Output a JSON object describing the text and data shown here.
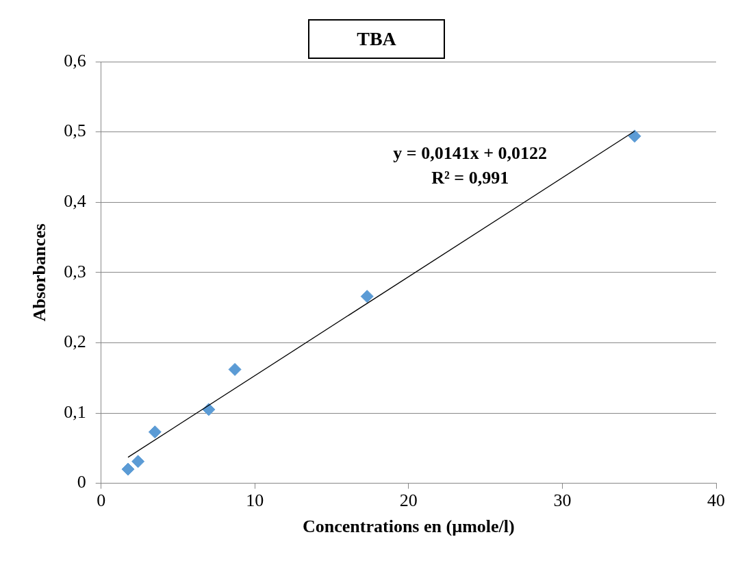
{
  "chart_data": {
    "type": "scatter",
    "title": "TBA",
    "xlabel": "Concentrations en (µmole/l)",
    "ylabel": "Absorbances",
    "series": [
      {
        "type": "scatter",
        "color": "#5b9bd5",
        "x": [
          1.75,
          2.4,
          3.5,
          7.0,
          8.7,
          17.3,
          34.7
        ],
        "values": [
          0.02,
          0.031,
          0.073,
          0.105,
          0.162,
          0.266,
          0.494
        ]
      },
      {
        "type": "line",
        "color": "#000000",
        "x": [
          1.75,
          34.7
        ],
        "values": [
          0.037,
          0.501
        ],
        "marker": "none"
      }
    ],
    "annotations": [
      "y = 0,0141x + 0,0122",
      "R² = 0,991"
    ],
    "xlim": [
      0,
      40
    ],
    "xticks": [
      0,
      10,
      20,
      30,
      40
    ],
    "ylim": [
      0,
      0.6
    ],
    "yticks": [
      {
        "value": 0,
        "label": "0"
      },
      {
        "value": 0.1,
        "label": "0,1"
      },
      {
        "value": 0.2,
        "label": "0,2"
      },
      {
        "value": 0.3,
        "label": "0,3"
      },
      {
        "value": 0.4,
        "label": "0,4"
      },
      {
        "value": 0.5,
        "label": "0,5"
      },
      {
        "value": 0.6,
        "label": "0,6"
      }
    ],
    "grid": "y",
    "legend": false,
    "marker": "diamond"
  }
}
